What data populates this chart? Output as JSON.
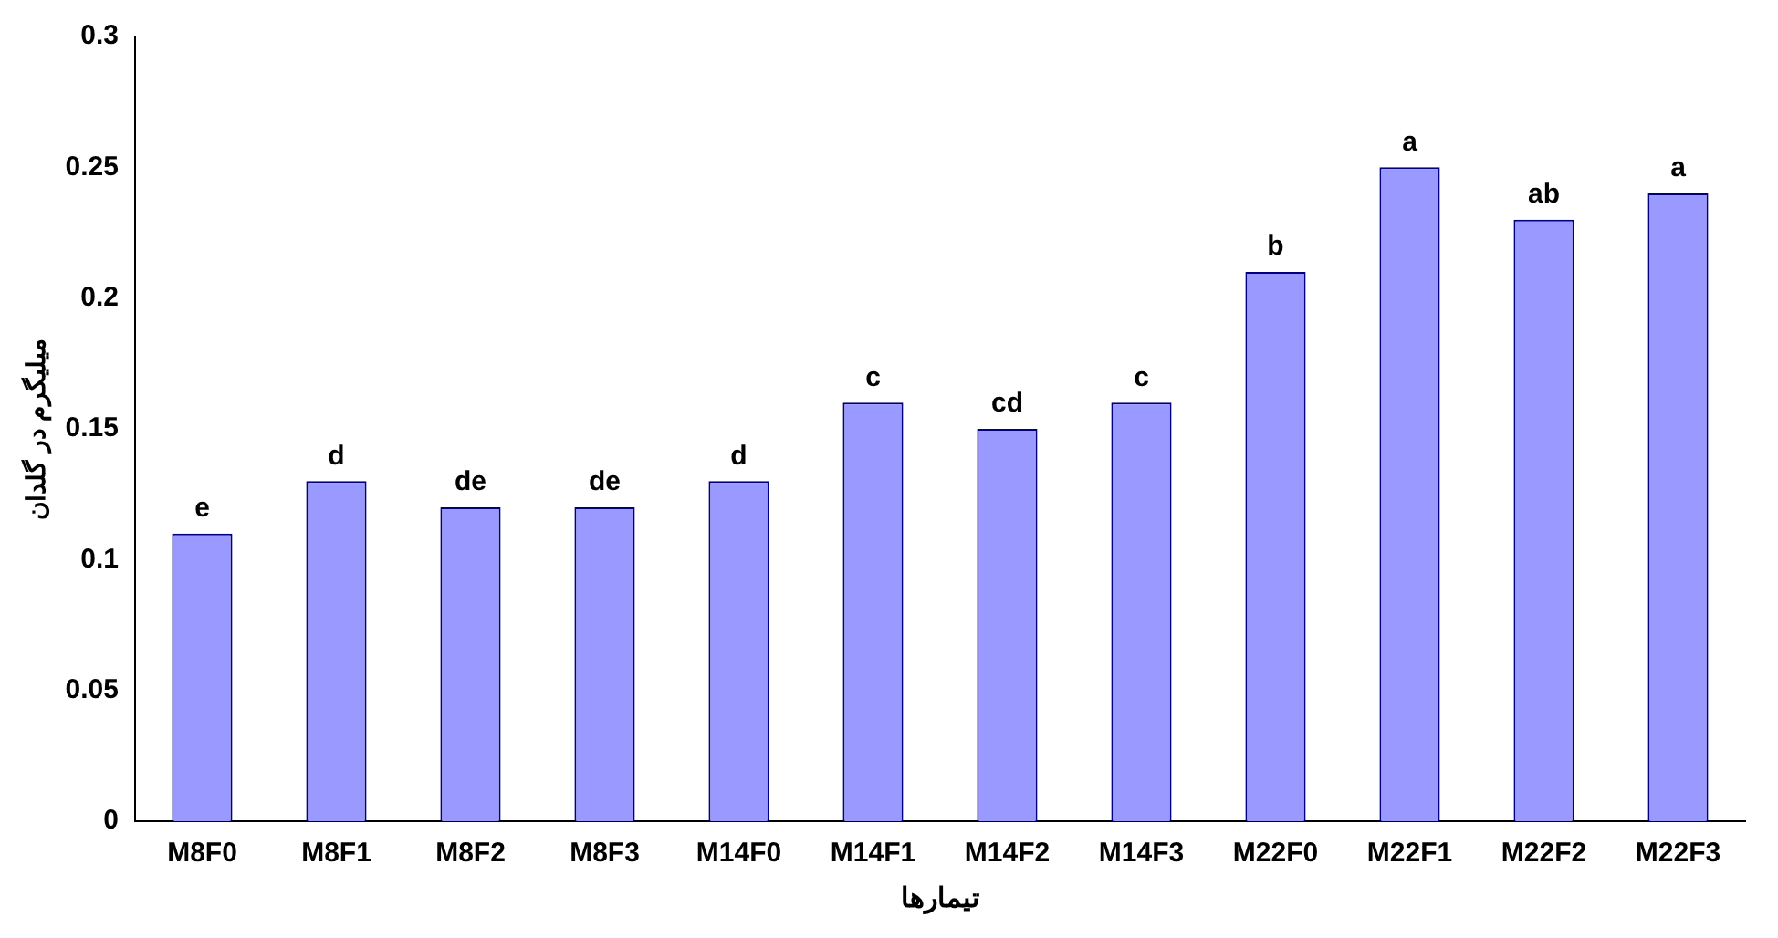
{
  "chart_data": {
    "type": "bar",
    "xlabel": "تیمارها",
    "ylabel": "میلیگرم در گلدان",
    "categories": [
      "M8F0",
      "M8F1",
      "M8F2",
      "M8F3",
      "M14F0",
      "M14F1",
      "M14F2",
      "M14F3",
      "M22F0",
      "M22F1",
      "M22F2",
      "M22F3"
    ],
    "values": [
      0.11,
      0.13,
      0.12,
      0.12,
      0.13,
      0.16,
      0.15,
      0.16,
      0.21,
      0.25,
      0.23,
      0.24
    ],
    "color": "#9999ff",
    "ylim": [
      0,
      0.3
    ],
    "yticks": [
      0,
      0.05,
      0.1,
      0.15,
      0.2,
      0.25,
      0.3
    ],
    "grid": false,
    "legend": false,
    "annotations": [
      {
        "text": "e",
        "x": "M8F0",
        "y": 0.11
      },
      {
        "text": "d",
        "x": "M8F1",
        "y": 0.13
      },
      {
        "text": "de",
        "x": "M8F2",
        "y": 0.12
      },
      {
        "text": "de",
        "x": "M8F3",
        "y": 0.12
      },
      {
        "text": "d",
        "x": "M14F0",
        "y": 0.13
      },
      {
        "text": "c",
        "x": "M14F1",
        "y": 0.16
      },
      {
        "text": "cd",
        "x": "M14F2",
        "y": 0.15
      },
      {
        "text": "c",
        "x": "M14F3",
        "y": 0.16
      },
      {
        "text": "b",
        "x": "M22F0",
        "y": 0.21
      },
      {
        "text": "a",
        "x": "M22F1",
        "y": 0.25
      },
      {
        "text": "ab",
        "x": "M22F2",
        "y": 0.23
      },
      {
        "text": "a",
        "x": "M22F3",
        "y": 0.24
      }
    ]
  }
}
